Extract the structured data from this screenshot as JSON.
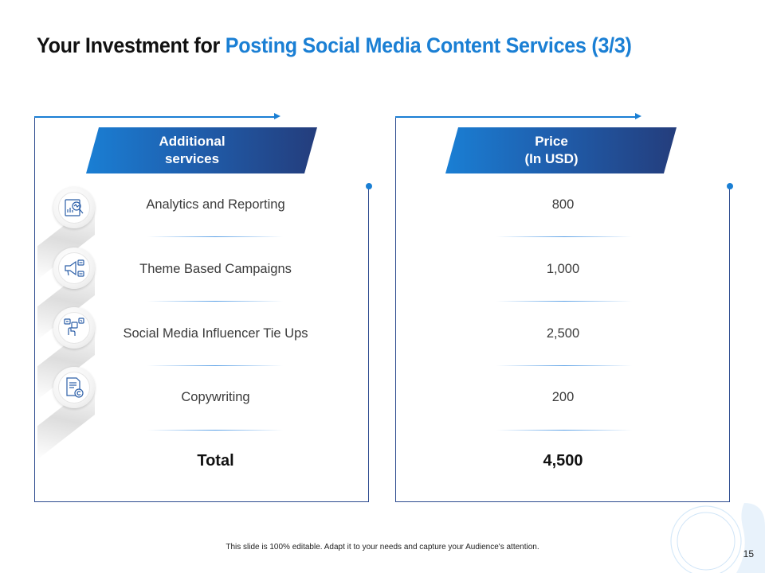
{
  "title": {
    "prefix": "Your Investment for ",
    "highlight": "Posting Social Media Content Services (3/3)"
  },
  "left_panel": {
    "header_line1": "Additional",
    "header_line2": "services",
    "rows": [
      {
        "label": "Analytics and Reporting",
        "icon": "analytics-report-icon"
      },
      {
        "label": "Theme Based Campaigns",
        "icon": "megaphone-campaign-icon"
      },
      {
        "label": "Social Media Influencer Tie Ups",
        "icon": "social-influencer-icon"
      },
      {
        "label": "Copywriting",
        "icon": "copyright-document-icon"
      }
    ],
    "total_label": "Total"
  },
  "right_panel": {
    "header_line1": "Price",
    "header_line2": "(In USD)",
    "values": [
      "800",
      "1,000",
      "2,500",
      "200"
    ],
    "total_value": "4,500"
  },
  "footer": "This slide is 100% editable. Adapt it to your needs and capture your Audience's attention.",
  "page_number": "15",
  "colors": {
    "accent": "#1a7fd4",
    "dark_blue": "#243d7c",
    "border": "#2c4a8e"
  }
}
